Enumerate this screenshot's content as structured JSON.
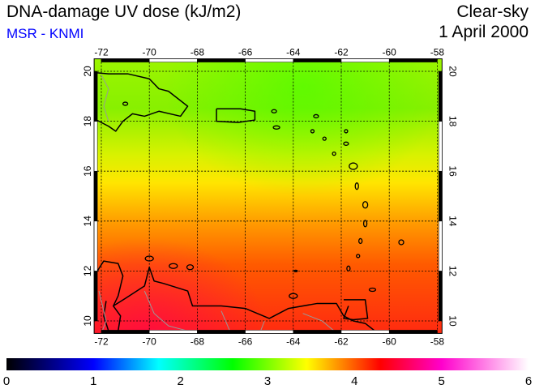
{
  "header": {
    "title": "DNA-damage UV dose (kJ/m2)",
    "source": "MSR - KNMI",
    "condition": "Clear-sky",
    "date": "1 April 2000"
  },
  "map": {
    "lon_ticks": [
      "-72",
      "-70",
      "-68",
      "-66",
      "-64",
      "-62",
      "-60",
      "-58"
    ],
    "lon_values": [
      -72,
      -70,
      -68,
      -66,
      -64,
      -62,
      -60,
      -58
    ],
    "lat_ticks": [
      "10",
      "12",
      "14",
      "16",
      "18",
      "20"
    ],
    "lat_values": [
      10,
      12,
      14,
      16,
      18,
      20
    ],
    "lon_range": [
      -72.3,
      -57.8
    ],
    "lat_range": [
      9.5,
      20.5
    ],
    "value_north": 3.0,
    "value_south": 4.3
  },
  "colorbar": {
    "ticks": [
      "0",
      "1",
      "2",
      "3",
      "4",
      "5",
      "6"
    ],
    "range": [
      0,
      6
    ],
    "stops": [
      {
        "v": 0,
        "c": "#000000"
      },
      {
        "v": 1,
        "c": "#0000ff"
      },
      {
        "v": 1.75,
        "c": "#00ffff"
      },
      {
        "v": 2.6,
        "c": "#00ff00"
      },
      {
        "v": 3.45,
        "c": "#ffff00"
      },
      {
        "v": 4.3,
        "c": "#ff0000"
      },
      {
        "v": 5.0,
        "c": "#ff00cc"
      },
      {
        "v": 6,
        "c": "#ffffff"
      }
    ]
  }
}
